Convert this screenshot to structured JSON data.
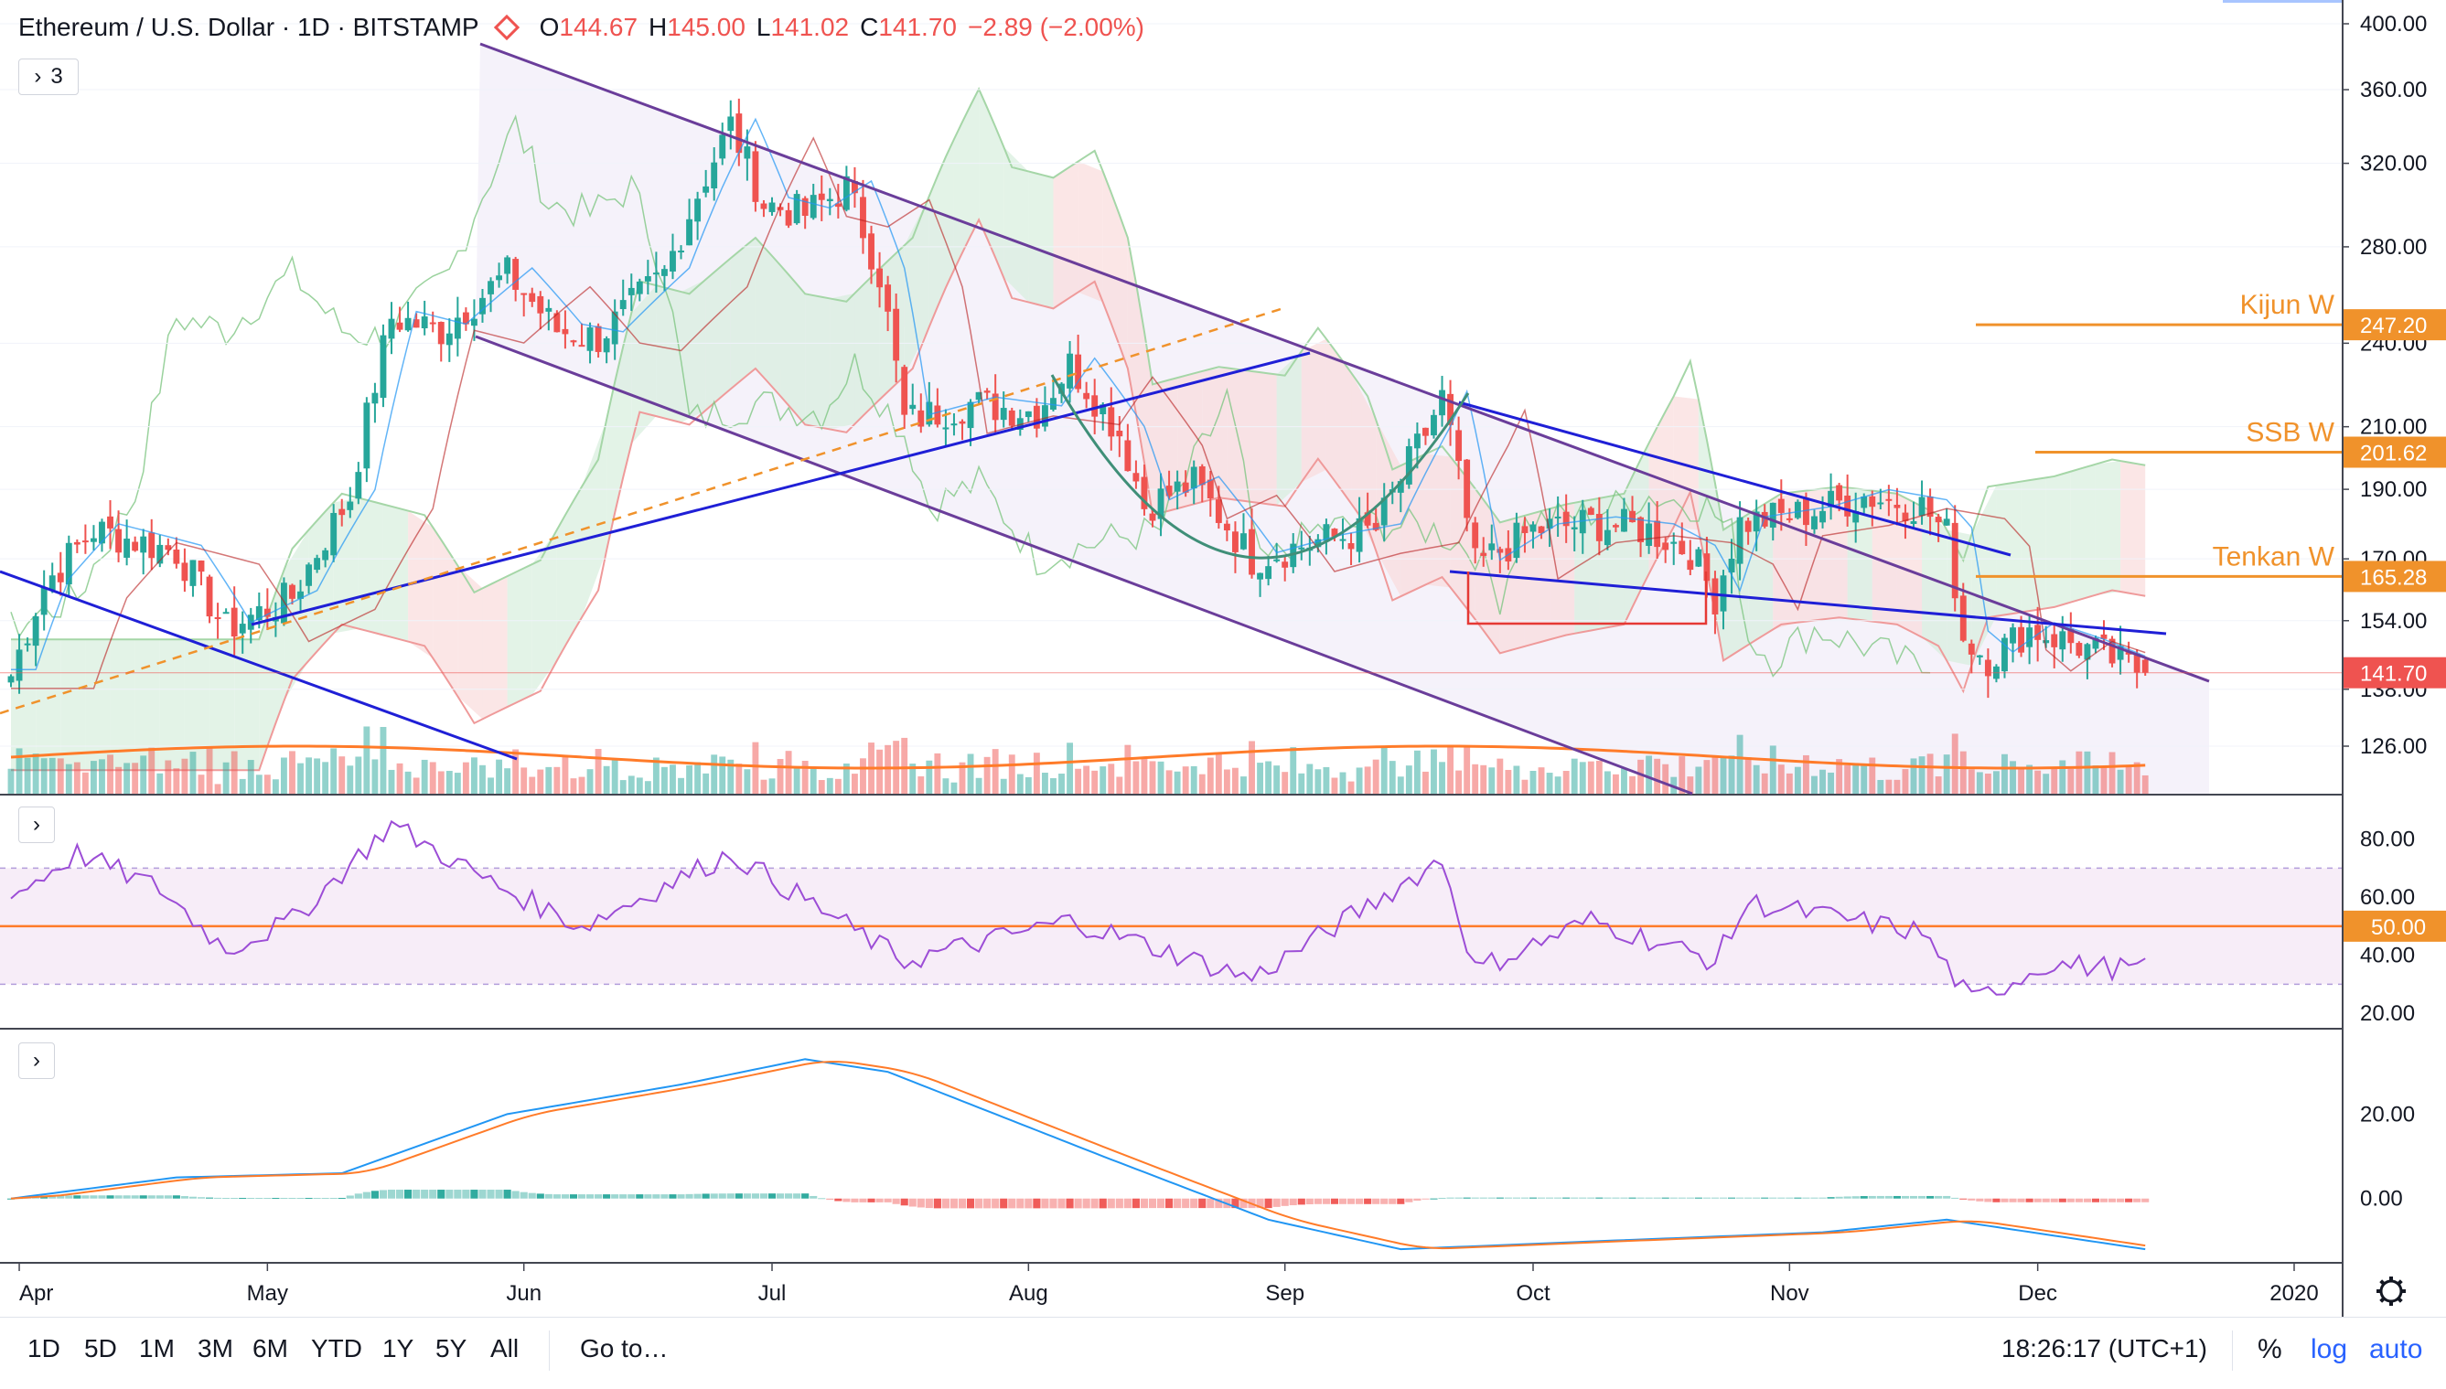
{
  "header": {
    "symbol": "Ethereum / U.S. Dollar · 1D · BITSTAMP",
    "o_label": "O",
    "o": "144.67",
    "h_label": "H",
    "h": "145.00",
    "l_label": "L",
    "l": "141.02",
    "c_label": "C",
    "c": "141.70",
    "change": "−2.89 (−2.00%)",
    "indicators_toggle": "3"
  },
  "colors": {
    "up": "#26a69a",
    "down": "#ef5350",
    "trend": "#1f1fd6",
    "channel": "#6a3d9a",
    "level": "#f0922b",
    "arc": "#3f8f78",
    "rsi": "#9c4dd6",
    "macd": "#2196f3",
    "signal": "#ff7b29"
  },
  "price_axis": {
    "ticks": [
      "400.00",
      "360.00",
      "320.00",
      "280.00",
      "240.00",
      "210.00",
      "190.00",
      "170.00",
      "154.00",
      "138.00",
      "126.00"
    ],
    "labels": [
      {
        "text": "247.20",
        "kind": "level"
      },
      {
        "text": "201.62",
        "kind": "level"
      },
      {
        "text": "165.28",
        "kind": "level"
      },
      {
        "text": "141.70",
        "kind": "last"
      }
    ]
  },
  "level_lines": [
    {
      "name": "Kijun W",
      "value": "247.20"
    },
    {
      "name": "SSB W",
      "value": "201.62"
    },
    {
      "name": "Tenkan W",
      "value": "165.28"
    }
  ],
  "rsi_axis": {
    "ticks": [
      "80.00",
      "60.00",
      "40.00",
      "20.00"
    ],
    "level": "50.00"
  },
  "macd_axis": {
    "ticks": [
      "20.00",
      "0.00"
    ]
  },
  "time_axis": {
    "labels": [
      "Apr",
      "May",
      "Jun",
      "Jul",
      "Aug",
      "Sep",
      "Oct",
      "Nov",
      "Dec",
      "2020"
    ]
  },
  "toolbar": {
    "ranges": [
      "1D",
      "5D",
      "1M",
      "3M",
      "6M",
      "YTD",
      "1Y",
      "5Y",
      "All"
    ],
    "goto": "Go to…",
    "clock": "18:26:17 (UTC+1)",
    "percent": "%",
    "log": "log",
    "auto": "auto"
  },
  "chart_data": {
    "type": "candlestick",
    "title": "Ethereum / U.S. Dollar · 1D · BITSTAMP",
    "scale": "log",
    "ylim": [
      116,
      410
    ],
    "x_start": "2019-03-31",
    "x_end": "2019-12-14",
    "last_close": 141.7,
    "anchors": [
      {
        "date": "2019-03-31",
        "close": 141
      },
      {
        "date": "2019-04-04",
        "close": 163
      },
      {
        "date": "2019-04-10",
        "close": 178
      },
      {
        "date": "2019-04-20",
        "close": 172
      },
      {
        "date": "2019-04-26",
        "close": 152
      },
      {
        "date": "2019-05-04",
        "close": 160
      },
      {
        "date": "2019-05-11",
        "close": 188
      },
      {
        "date": "2019-05-16",
        "close": 250
      },
      {
        "date": "2019-05-22",
        "close": 245
      },
      {
        "date": "2019-05-30",
        "close": 268
      },
      {
        "date": "2019-06-05",
        "close": 245
      },
      {
        "date": "2019-06-10",
        "close": 242
      },
      {
        "date": "2019-06-18",
        "close": 268
      },
      {
        "date": "2019-06-22",
        "close": 305
      },
      {
        "date": "2019-06-26",
        "close": 340
      },
      {
        "date": "2019-06-30",
        "close": 300
      },
      {
        "date": "2019-07-05",
        "close": 295
      },
      {
        "date": "2019-07-10",
        "close": 308
      },
      {
        "date": "2019-07-14",
        "close": 268
      },
      {
        "date": "2019-07-17",
        "close": 212
      },
      {
        "date": "2019-07-25",
        "close": 218
      },
      {
        "date": "2019-08-02",
        "close": 215
      },
      {
        "date": "2019-08-06",
        "close": 232
      },
      {
        "date": "2019-08-12",
        "close": 208
      },
      {
        "date": "2019-08-15",
        "close": 185
      },
      {
        "date": "2019-08-21",
        "close": 192
      },
      {
        "date": "2019-08-28",
        "close": 170
      },
      {
        "date": "2019-09-05",
        "close": 175
      },
      {
        "date": "2019-09-12",
        "close": 178
      },
      {
        "date": "2019-09-18",
        "close": 208
      },
      {
        "date": "2019-09-20",
        "close": 220
      },
      {
        "date": "2019-09-24",
        "close": 168
      },
      {
        "date": "2019-10-01",
        "close": 178
      },
      {
        "date": "2019-10-08",
        "close": 180
      },
      {
        "date": "2019-10-15",
        "close": 178
      },
      {
        "date": "2019-10-20",
        "close": 172
      },
      {
        "date": "2019-10-23",
        "close": 160
      },
      {
        "date": "2019-10-26",
        "close": 180
      },
      {
        "date": "2019-11-03",
        "close": 183
      },
      {
        "date": "2019-11-10",
        "close": 188
      },
      {
        "date": "2019-11-17",
        "close": 185
      },
      {
        "date": "2019-11-20",
        "close": 177
      },
      {
        "date": "2019-11-22",
        "close": 150
      },
      {
        "date": "2019-11-25",
        "close": 145
      },
      {
        "date": "2019-11-30",
        "close": 152
      },
      {
        "date": "2019-12-06",
        "close": 148
      },
      {
        "date": "2019-12-14",
        "close": 141.7
      }
    ],
    "rsi_ylim": [
      15,
      95
    ],
    "rsi_anchors": [
      {
        "date": "2019-03-31",
        "value": 60
      },
      {
        "date": "2019-04-08",
        "value": 75
      },
      {
        "date": "2019-04-18",
        "value": 63
      },
      {
        "date": "2019-04-26",
        "value": 42
      },
      {
        "date": "2019-05-04",
        "value": 52
      },
      {
        "date": "2019-05-16",
        "value": 85
      },
      {
        "date": "2019-05-28",
        "value": 65
      },
      {
        "date": "2019-06-08",
        "value": 50
      },
      {
        "date": "2019-06-26",
        "value": 75
      },
      {
        "date": "2019-07-17",
        "value": 38
      },
      {
        "date": "2019-08-06",
        "value": 52
      },
      {
        "date": "2019-08-28",
        "value": 32
      },
      {
        "date": "2019-09-20",
        "value": 73
      },
      {
        "date": "2019-09-24",
        "value": 35
      },
      {
        "date": "2019-10-08",
        "value": 52
      },
      {
        "date": "2019-10-23",
        "value": 38
      },
      {
        "date": "2019-10-27",
        "value": 58
      },
      {
        "date": "2019-11-17",
        "value": 48
      },
      {
        "date": "2019-11-23",
        "value": 24
      },
      {
        "date": "2019-12-02",
        "value": 37
      },
      {
        "date": "2019-12-14",
        "value": 35
      }
    ],
    "macd_ylim": [
      -15,
      40
    ],
    "macd_anchors": [
      {
        "date": "2019-03-31",
        "value": 0
      },
      {
        "date": "2019-04-20",
        "value": 5
      },
      {
        "date": "2019-05-10",
        "value": 6
      },
      {
        "date": "2019-05-30",
        "value": 20
      },
      {
        "date": "2019-06-20",
        "value": 27
      },
      {
        "date": "2019-07-05",
        "value": 33
      },
      {
        "date": "2019-07-15",
        "value": 30
      },
      {
        "date": "2019-08-10",
        "value": 10
      },
      {
        "date": "2019-08-30",
        "value": -5
      },
      {
        "date": "2019-09-15",
        "value": -12
      },
      {
        "date": "2019-10-10",
        "value": -10
      },
      {
        "date": "2019-11-05",
        "value": -8
      },
      {
        "date": "2019-11-20",
        "value": -5
      },
      {
        "date": "2019-12-14",
        "value": -12
      }
    ]
  }
}
